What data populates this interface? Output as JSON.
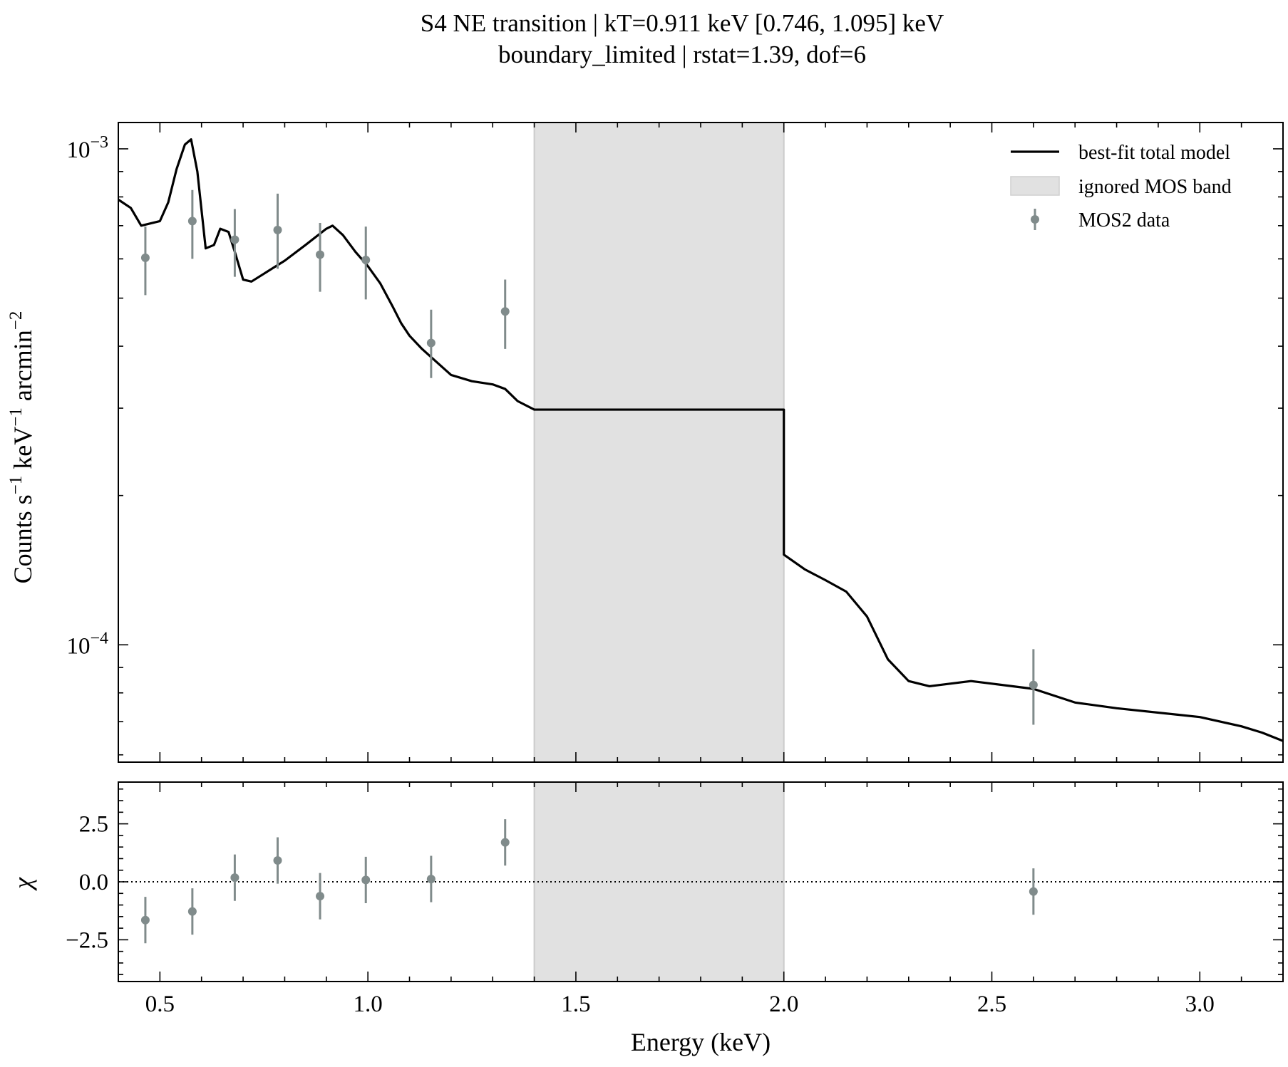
{
  "chart_data": {
    "type": "line",
    "title": "S4 NE transition | kT=0.911 keV [0.746, 1.095] keV",
    "subtitle": "boundary_limited | rstat=1.39, dof=6",
    "xlabel": "Energy (keV)",
    "xlim": [
      0.4,
      3.2
    ],
    "x_ticks": [
      0.5,
      1.0,
      1.5,
      2.0,
      2.5,
      3.0
    ],
    "x_tick_labels": [
      "0.5",
      "1.0",
      "1.5",
      "2.0",
      "2.5",
      "3.0"
    ],
    "ignored_band": {
      "name": "ignored MOS band",
      "x0": 1.4,
      "x1": 2.0,
      "color": "#e1e1e1"
    },
    "legend": {
      "placement": "top-right",
      "entries": [
        "best-fit total model",
        "ignored MOS band",
        "MOS2 data"
      ]
    },
    "spectrum": {
      "ylabel_main": "Counts s",
      "ylabel_exp1": "−1",
      "ylabel_mid": " keV",
      "ylabel_exp2": "−1",
      "ylabel_end": " arcmin",
      "ylabel_exp3": "−2",
      "yscale": "log",
      "ylim": [
        5.8e-05,
        0.00113
      ],
      "y_major_ticks": [
        {
          "value": 0.0001,
          "base": "10",
          "exp": "−4"
        },
        {
          "value": 0.001,
          "base": "10",
          "exp": "−3"
        }
      ],
      "model": {
        "name": "best-fit total model",
        "color": "#000000",
        "x": [
          0.4,
          0.43,
          0.455,
          0.5,
          0.52,
          0.54,
          0.56,
          0.575,
          0.59,
          0.61,
          0.63,
          0.645,
          0.665,
          0.68,
          0.7,
          0.72,
          0.75,
          0.8,
          0.85,
          0.9,
          0.915,
          0.94,
          0.97,
          1.0,
          1.03,
          1.06,
          1.08,
          1.1,
          1.13,
          1.16,
          1.2,
          1.25,
          1.3,
          1.33,
          1.36,
          1.4,
          2.0,
          2.0,
          2.05,
          2.1,
          2.15,
          2.2,
          2.25,
          2.3,
          2.35,
          2.4,
          2.45,
          2.5,
          2.6,
          2.7,
          2.8,
          3.0,
          3.1,
          3.15,
          3.2
        ],
        "y": [
          0.00079,
          0.00076,
          0.0007,
          0.000715,
          0.00078,
          0.00091,
          0.00102,
          0.001045,
          0.0009,
          0.00063,
          0.00064,
          0.00069,
          0.00068,
          0.00062,
          0.000545,
          0.00054,
          0.00056,
          0.000595,
          0.00064,
          0.00069,
          0.0007,
          0.00067,
          0.00062,
          0.00058,
          0.000535,
          0.00048,
          0.000445,
          0.00042,
          0.000395,
          0.000375,
          0.00035,
          0.00034,
          0.000335,
          0.000328,
          0.00031,
          0.000298,
          0.000298,
          0.000152,
          0.000142,
          0.000135,
          0.000128,
          0.000114,
          9.35e-05,
          8.45e-05,
          8.25e-05,
          8.35e-05,
          8.45e-05,
          8.35e-05,
          8.15e-05,
          7.65e-05,
          7.45e-05,
          7.15e-05,
          6.85e-05,
          6.65e-05,
          6.4e-05
        ]
      },
      "data": {
        "name": "MOS2 data",
        "color": "#808b8b",
        "points": [
          {
            "x": 0.465,
            "y": 0.000603,
            "ylo": 0.000507,
            "yhi": 0.000697
          },
          {
            "x": 0.578,
            "y": 0.000715,
            "ylo": 0.0006,
            "yhi": 0.000826
          },
          {
            "x": 0.68,
            "y": 0.000656,
            "ylo": 0.000552,
            "yhi": 0.000756
          },
          {
            "x": 0.783,
            "y": 0.000686,
            "ylo": 0.000573,
            "yhi": 0.000812
          },
          {
            "x": 0.885,
            "y": 0.000612,
            "ylo": 0.000515,
            "yhi": 0.000709
          },
          {
            "x": 0.995,
            "y": 0.000597,
            "ylo": 0.000497,
            "yhi": 0.000697
          },
          {
            "x": 1.152,
            "y": 0.000406,
            "ylo": 0.000345,
            "yhi": 0.000474
          },
          {
            "x": 1.33,
            "y": 0.00047,
            "ylo": 0.000395,
            "yhi": 0.000545
          },
          {
            "x": 2.6,
            "y": 8.3e-05,
            "ylo": 6.9e-05,
            "yhi": 9.8e-05
          }
        ]
      }
    },
    "residuals": {
      "ylabel": "χ",
      "ylim": [
        -4.3,
        4.3
      ],
      "y_ticks": [
        2.5,
        0.0,
        -2.5
      ],
      "y_tick_labels": [
        "2.5",
        "0.0",
        "−2.5"
      ],
      "zero_line": true,
      "points": [
        {
          "x": 0.465,
          "y": -1.65,
          "err": 1.0
        },
        {
          "x": 0.578,
          "y": -1.28,
          "err": 1.0
        },
        {
          "x": 0.68,
          "y": 0.18,
          "err": 1.0
        },
        {
          "x": 0.783,
          "y": 0.92,
          "err": 1.0
        },
        {
          "x": 0.885,
          "y": -0.62,
          "err": 1.0
        },
        {
          "x": 0.995,
          "y": 0.08,
          "err": 1.0
        },
        {
          "x": 1.152,
          "y": 0.12,
          "err": 1.0
        },
        {
          "x": 1.33,
          "y": 1.7,
          "err": 1.0
        },
        {
          "x": 2.6,
          "y": -0.42,
          "err": 1.0
        }
      ]
    }
  }
}
